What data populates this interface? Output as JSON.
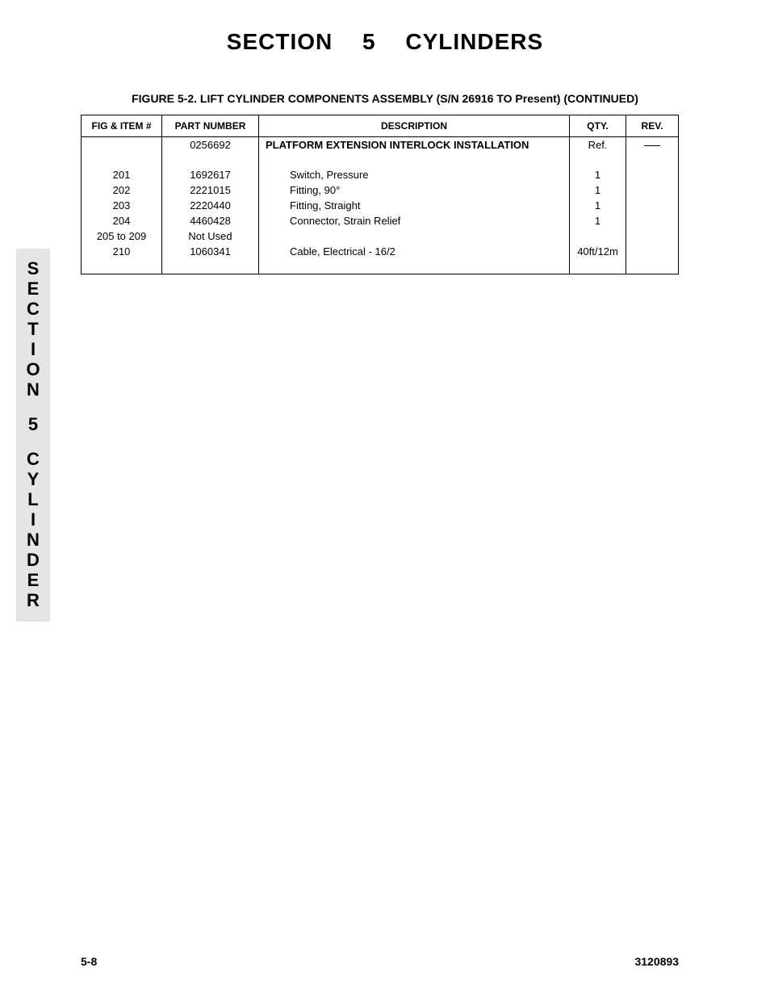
{
  "header": {
    "section_title": "SECTION 5    CYLINDERS",
    "figure_label": "FIGURE 5-2.  LIFT CYLINDER COMPONENTS ASSEMBLY (S/N 26916 TO Present) (CONTINUED)"
  },
  "side_tab": {
    "letters": [
      "S",
      "E",
      "C",
      "T",
      "I",
      "O",
      "N",
      "",
      "5",
      "",
      "C",
      "Y",
      "L",
      "I",
      "N",
      "D",
      "E",
      "R"
    ]
  },
  "table": {
    "columns": {
      "fig": "FIG & ITEM #",
      "part": "PART NUMBER",
      "desc": "DESCRIPTION",
      "qty": "QTY.",
      "rev": "REV."
    },
    "rows": [
      {
        "fig": "",
        "part": "0256692",
        "desc": "PLATFORM EXTENSION INTERLOCK INSTALLATION",
        "qty": "Ref.",
        "rev": "—",
        "bold_desc": true,
        "rev_dash": true
      },
      {
        "spacer": true
      },
      {
        "fig": "201",
        "part": "1692617",
        "desc": "Switch, Pressure",
        "qty": "1",
        "rev": "",
        "indent": true
      },
      {
        "fig": "202",
        "part": "2221015",
        "desc": "Fitting, 90°",
        "qty": "1",
        "rev": "",
        "indent": true
      },
      {
        "fig": "203",
        "part": "2220440",
        "desc": "Fitting, Straight",
        "qty": "1",
        "rev": "",
        "indent": true
      },
      {
        "fig": "204",
        "part": "4460428",
        "desc": "Connector, Strain Relief",
        "qty": "1",
        "rev": "",
        "indent": true
      },
      {
        "fig": "205 to 209",
        "part": "Not Used",
        "desc": "",
        "qty": "",
        "rev": ""
      },
      {
        "fig": "210",
        "part": "1060341",
        "desc": "Cable, Electrical - 16/2",
        "qty": "40ft/12m",
        "rev": "",
        "indent": true
      }
    ]
  },
  "footer": {
    "page_left": "5-8",
    "page_right": "3120893"
  },
  "style": {
    "background": "#ffffff",
    "side_tab_bg": "#e5e5e5",
    "border_color": "#000000"
  }
}
